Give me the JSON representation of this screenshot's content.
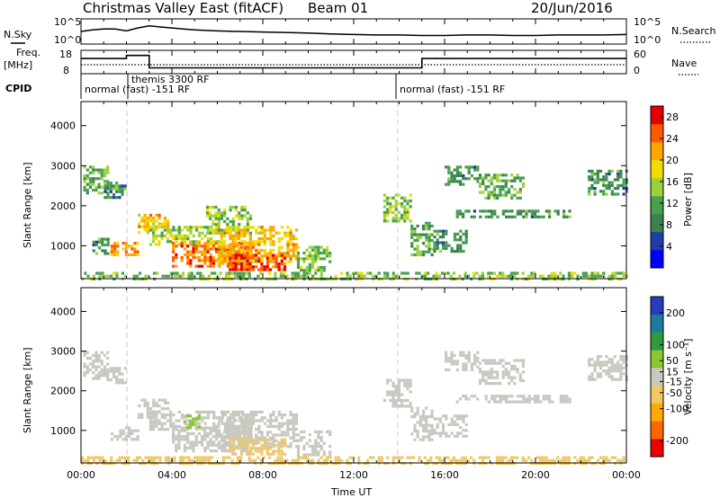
{
  "header": {
    "title": "Christmas Valley East (fitACF)",
    "beam": "Beam 01",
    "date": "20/Jun/2016"
  },
  "top_panels": {
    "nsky_label": "N.Sky",
    "nsky_ticks": [
      "10^5",
      "10^0"
    ],
    "nsearch_label": "N.Search",
    "nsearch_ticks": [
      "10^5",
      "10^0"
    ],
    "freq_label": "Freq.",
    "freq_unit": "[MHz]",
    "freq_ticks": [
      "18",
      "8"
    ],
    "nave_label": "Nave",
    "nave_ticks": [
      "60",
      "0"
    ],
    "cpid_label": "CPID",
    "cpid_segments": [
      "normal (fast) -151 RF",
      "themis 3300 RF",
      "normal (fast) -151 RF"
    ]
  },
  "xaxis": {
    "label": "Time UT",
    "ticks": [
      "00:00",
      "04:00",
      "08:00",
      "12:00",
      "16:00",
      "20:00",
      "00:00"
    ]
  },
  "chart_data": [
    {
      "type": "line",
      "panel": "sky-noise",
      "ylabel": "N.Sky",
      "scale": "log",
      "y_ticks": [
        "10^0",
        "10^5"
      ],
      "x_hours": [
        0,
        0.5,
        1,
        1.5,
        2,
        2.5,
        3,
        3.5,
        4,
        4.5,
        5,
        6,
        7,
        8,
        9,
        10,
        11,
        12,
        13,
        14,
        15,
        16,
        17,
        18,
        19,
        20,
        21,
        22,
        23,
        24
      ],
      "series": [
        {
          "values_log10": [
            2.5,
            2.8,
            3.0,
            3.0,
            2.6,
            3.2,
            3.6,
            3.4,
            3.2,
            3.0,
            2.8,
            2.6,
            2.5,
            2.4,
            2.3,
            2.2,
            2.0,
            1.9,
            1.8,
            1.8,
            1.7,
            1.7,
            1.8,
            1.8,
            1.7,
            1.7,
            1.8,
            1.8,
            1.8,
            1.9
          ]
        }
      ]
    },
    {
      "type": "line",
      "panel": "frequency",
      "ylabel": "Freq. [MHz]",
      "ylim": [
        8,
        18
      ],
      "x_hours": [
        0,
        2,
        2,
        3,
        3,
        15,
        15,
        24
      ],
      "series": [
        {
          "values": [
            14.5,
            14.5,
            15.8,
            15.8,
            10.5,
            10.5,
            14.5,
            14.5
          ]
        }
      ]
    },
    {
      "type": "line",
      "panel": "nave",
      "ylabel": "Nave",
      "ylim": [
        0,
        60
      ],
      "x_hours": [
        0,
        24
      ],
      "series": [
        {
          "values": [
            23,
            23
          ]
        }
      ]
    },
    {
      "type": "heatmap",
      "panel": "power",
      "ylabel": "Slant Range [km]",
      "xlim": [
        0,
        24
      ],
      "ylim": [
        180,
        4600
      ],
      "y_ticks": [
        1000,
        2000,
        3000,
        4000
      ],
      "colorbar": {
        "label": "Power [dB]",
        "ticks": [
          4,
          8,
          12,
          16,
          20,
          24,
          28
        ],
        "range": [
          0,
          30
        ]
      },
      "regions": [
        {
          "t": [
            0.1,
            1.2
          ],
          "r": [
            2300,
            3000
          ],
          "v": 12
        },
        {
          "t": [
            1.0,
            2.0
          ],
          "r": [
            2200,
            2600
          ],
          "v": 10
        },
        {
          "t": [
            0.5,
            1.2
          ],
          "r": [
            800,
            1200
          ],
          "v": 10
        },
        {
          "t": [
            1.3,
            2.5
          ],
          "r": [
            750,
            1100
          ],
          "v": 22
        },
        {
          "t": [
            2.5,
            3.8
          ],
          "r": [
            1300,
            1800
          ],
          "v": 20
        },
        {
          "t": [
            3.0,
            6.0
          ],
          "r": [
            1050,
            1500
          ],
          "v": 16
        },
        {
          "t": [
            4.0,
            7.5
          ],
          "r": [
            500,
            1100
          ],
          "v": 24
        },
        {
          "t": [
            5.5,
            7.5
          ],
          "r": [
            1300,
            2000
          ],
          "v": 14
        },
        {
          "t": [
            6.0,
            9.5
          ],
          "r": [
            600,
            1500
          ],
          "v": 20
        },
        {
          "t": [
            6.5,
            9.0
          ],
          "r": [
            400,
            800
          ],
          "v": 26
        },
        {
          "t": [
            9.5,
            11.0
          ],
          "r": [
            400,
            1000
          ],
          "v": 14
        },
        {
          "t": [
            13.3,
            14.5
          ],
          "r": [
            1600,
            2300
          ],
          "v": 14
        },
        {
          "t": [
            14.5,
            15.5
          ],
          "r": [
            800,
            1600
          ],
          "v": 12
        },
        {
          "t": [
            15.5,
            17.0
          ],
          "r": [
            850,
            1400
          ],
          "v": 10
        },
        {
          "t": [
            16.0,
            17.5
          ],
          "r": [
            2500,
            3000
          ],
          "v": 10
        },
        {
          "t": [
            17.5,
            19.5
          ],
          "r": [
            2200,
            2800
          ],
          "v": 12
        },
        {
          "t": [
            16.5,
            21.5
          ],
          "r": [
            1700,
            1900
          ],
          "v": 10
        },
        {
          "t": [
            22.3,
            24.0
          ],
          "r": [
            2300,
            2900
          ],
          "v": 10
        },
        {
          "t": [
            0.0,
            24.0
          ],
          "r": [
            200,
            350
          ],
          "v": 14
        }
      ]
    },
    {
      "type": "heatmap",
      "panel": "velocity",
      "ylabel": "Slant Range [km]",
      "xlim": [
        0,
        24
      ],
      "ylim": [
        180,
        4600
      ],
      "y_ticks": [
        1000,
        2000,
        3000,
        4000
      ],
      "colorbar": {
        "label": "Velocity [m s⁻¹]",
        "ticks": [
          -200,
          -100,
          -50,
          -15,
          15,
          50,
          100,
          200
        ],
        "range": [
          -250,
          250
        ]
      },
      "regions": [
        {
          "t": [
            0.1,
            1.2
          ],
          "r": [
            2300,
            3000
          ],
          "v": 0
        },
        {
          "t": [
            1.0,
            2.0
          ],
          "r": [
            2200,
            2600
          ],
          "v": 0
        },
        {
          "t": [
            1.3,
            2.5
          ],
          "r": [
            750,
            1100
          ],
          "v": 5
        },
        {
          "t": [
            2.5,
            3.8
          ],
          "r": [
            1300,
            1800
          ],
          "v": 0
        },
        {
          "t": [
            3.0,
            7.5
          ],
          "r": [
            1050,
            1500
          ],
          "v": 0
        },
        {
          "t": [
            4.0,
            7.5
          ],
          "r": [
            500,
            1100
          ],
          "v": -5
        },
        {
          "t": [
            6.0,
            9.5
          ],
          "r": [
            600,
            1500
          ],
          "v": 0
        },
        {
          "t": [
            6.5,
            9.0
          ],
          "r": [
            400,
            800
          ],
          "v": -40
        },
        {
          "t": [
            4.5,
            5.2
          ],
          "r": [
            1100,
            1400
          ],
          "v": 40
        },
        {
          "t": [
            9.5,
            11.0
          ],
          "r": [
            400,
            1000
          ],
          "v": 0
        },
        {
          "t": [
            13.3,
            14.5
          ],
          "r": [
            1600,
            2300
          ],
          "v": 0
        },
        {
          "t": [
            14.5,
            15.5
          ],
          "r": [
            800,
            1600
          ],
          "v": 0
        },
        {
          "t": [
            15.5,
            17.0
          ],
          "r": [
            850,
            1400
          ],
          "v": 0
        },
        {
          "t": [
            16.0,
            17.5
          ],
          "r": [
            2500,
            3000
          ],
          "v": 0
        },
        {
          "t": [
            17.5,
            19.5
          ],
          "r": [
            2200,
            2800
          ],
          "v": 0
        },
        {
          "t": [
            16.5,
            21.5
          ],
          "r": [
            1700,
            1900
          ],
          "v": 0
        },
        {
          "t": [
            22.3,
            24.0
          ],
          "r": [
            2300,
            2900
          ],
          "v": 0
        },
        {
          "t": [
            0.0,
            24.0
          ],
          "r": [
            200,
            350
          ],
          "v": -60
        }
      ]
    }
  ],
  "colors": {
    "power_scale": [
      "#0000ff",
      "#1e3caa",
      "#3c8250",
      "#46a050",
      "#9bd23c",
      "#f0dc00",
      "#ffa500",
      "#ff5a00",
      "#e60000"
    ],
    "velocity_scale": [
      "#ee0000",
      "#ff6600",
      "#ffaa00",
      "#f0c864",
      "#c8c8c0",
      "#8ac832",
      "#2f9b3c",
      "#1e7aa0",
      "#283cbe"
    ],
    "grid_dashed": "#c8c8c8"
  }
}
